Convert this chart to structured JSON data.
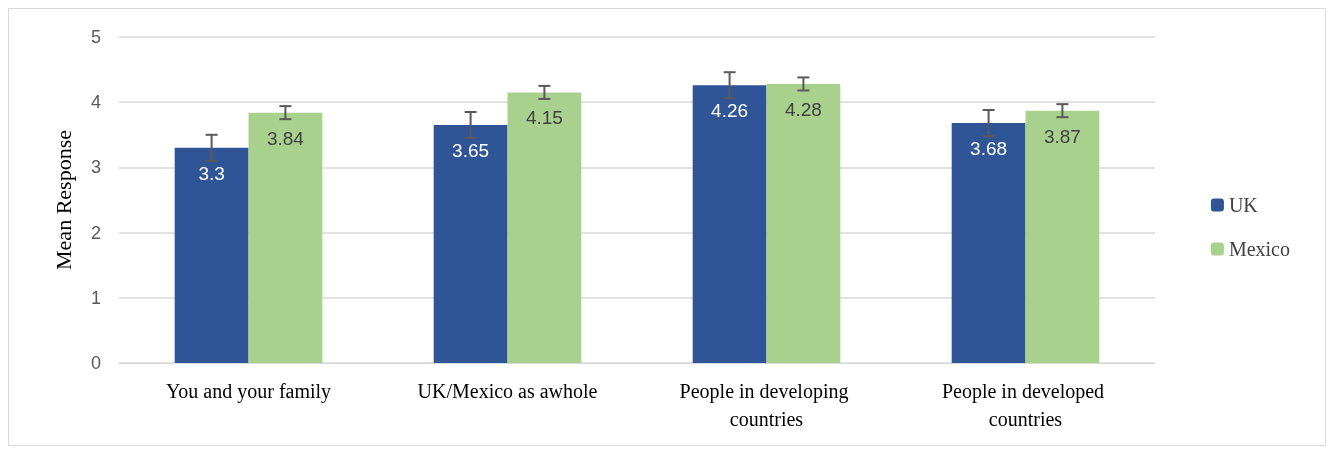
{
  "chart_data": {
    "type": "bar",
    "ylabel": "Mean Response",
    "categories": [
      "You and your family",
      "UK/Mexico as awhole",
      "People in developing countries",
      "People in developed countries"
    ],
    "series": [
      {
        "name": "UK",
        "color": "#2f5597",
        "values": [
          3.3,
          3.65,
          4.26,
          3.68
        ],
        "errors": [
          0.2,
          0.2,
          0.2,
          0.2
        ]
      },
      {
        "name": "Mexico",
        "color": "#a9d18e",
        "values": [
          3.84,
          4.15,
          4.28,
          3.87
        ],
        "errors": [
          0.1,
          0.1,
          0.1,
          0.1
        ]
      }
    ],
    "ylim": [
      0,
      5
    ],
    "yticks": [
      0,
      1,
      2,
      3,
      4,
      5
    ],
    "grid": "y",
    "legend": "right",
    "data_labels": true
  }
}
